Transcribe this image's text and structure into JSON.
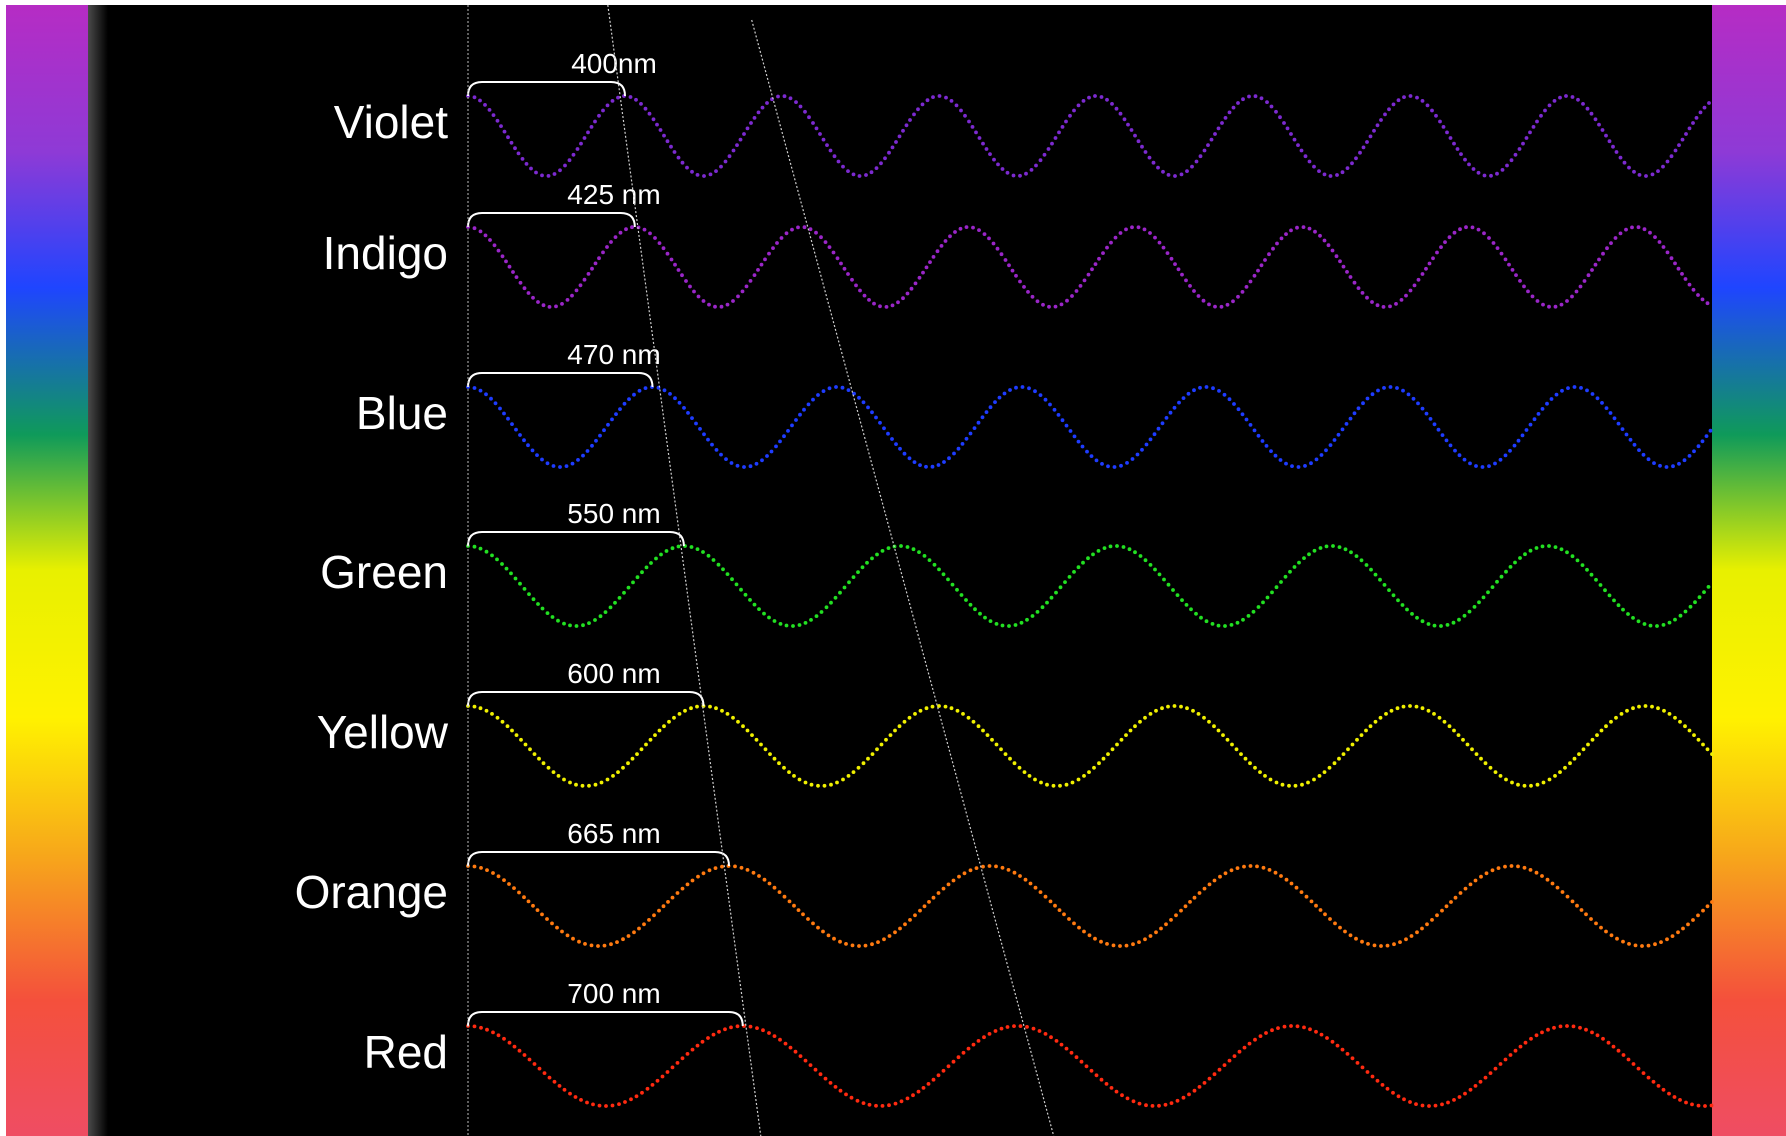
{
  "spectrum_colors": [
    "#b62cc4",
    "#8e3ad6",
    "#1f45ff",
    "#0f9a5a",
    "#e8f000",
    "#fff200",
    "#f7a81a",
    "#f4503c",
    "#ef4d63"
  ],
  "rows": [
    {
      "name": "Violet",
      "wavelength_label": "400nm",
      "wavelength_nm": 400,
      "color": "#7c2ad0"
    },
    {
      "name": "Indigo",
      "wavelength_label": "425 nm",
      "wavelength_nm": 425,
      "color": "#9a26c8"
    },
    {
      "name": "Blue",
      "wavelength_label": "470 nm",
      "wavelength_nm": 470,
      "color": "#1e3cff"
    },
    {
      "name": "Green",
      "wavelength_label": "550 nm",
      "wavelength_nm": 550,
      "color": "#22e022"
    },
    {
      "name": "Yellow",
      "wavelength_label": "600 nm",
      "wavelength_nm": 600,
      "color": "#f0f000"
    },
    {
      "name": "Orange",
      "wavelength_label": "665 nm",
      "wavelength_nm": 665,
      "color": "#ff7a10"
    },
    {
      "name": "Red",
      "wavelength_label": "700 nm",
      "wavelength_nm": 700,
      "color": "#ff2a10"
    }
  ]
}
